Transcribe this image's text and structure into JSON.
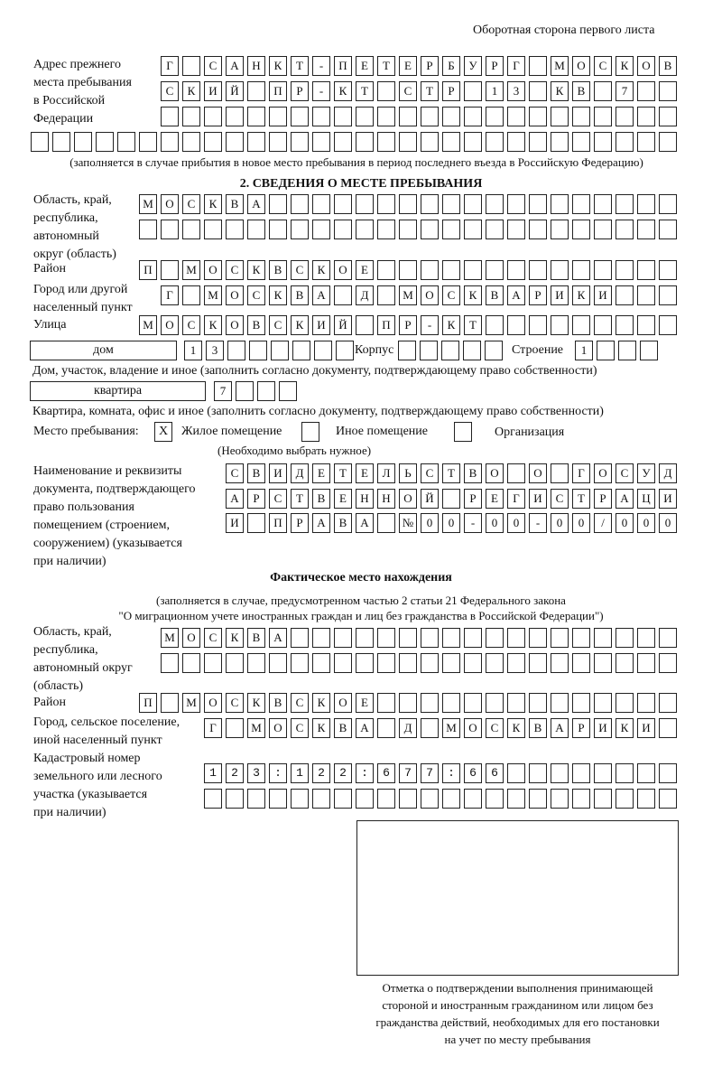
{
  "header": {
    "page_note": "Оборотная сторона первого листа"
  },
  "prev_address": {
    "label": [
      "Адрес прежнего",
      "места пребывания",
      "в Российской",
      "Федерации"
    ],
    "rows": [
      "Г САНКТ-ПЕТЕРБУРГ МОСКОВ",
      "СКИЙ ПР-КТ СТР 13 КВ 7  ",
      "                        ",
      "                              "
    ],
    "note": "(заполняется в случае прибытия в новое место пребывания в период последнего въезда в Российскую Федерацию)"
  },
  "section2": {
    "title": "2. СВЕДЕНИЯ О МЕСТЕ ПРЕБЫВАНИЯ",
    "region_label": [
      "Область, край,",
      "республика,",
      "автономный",
      "округ (область)"
    ],
    "region_rows": [
      "МОСКВА                   ",
      "                         "
    ],
    "district_label": "Район",
    "district_row": "П МОСКВСКОЕ              ",
    "city_label": [
      "Город или другой",
      "населенный пункт"
    ],
    "city_row": "Г МОСКВА Д МОСКВАРИКИ   ",
    "street_label": "Улица",
    "street_row": "МОСКОВСКИЙ ПР-КТ         ",
    "house_type": "дом",
    "house_row": "13      ",
    "korpus_label": "Корпус",
    "korpus_row": "     ",
    "building_label": "Строение",
    "building_row": "1   ",
    "house_note": "Дом, участок, владение и иное (заполнить согласно документу, подтверждающему право собственности)",
    "apt_type": "квартира",
    "apt_row": "7   ",
    "apt_note": "Квартира, комната, офис и иное (заполнить согласно документу, подтверждающему право собственности)",
    "stay_label": "Место пребывания:",
    "stay_options": [
      {
        "mark": "X",
        "label": "Жилое помещение"
      },
      {
        "mark": "",
        "label": "Иное помещение"
      },
      {
        "mark": "",
        "label": "Организация"
      }
    ],
    "stay_note": "(Необходимо выбрать нужное)",
    "doc_label": [
      "Наименование и реквизиты",
      "документа, подтверждающего",
      "право пользования",
      "помещением (строением,",
      "сооружением) (указывается",
      "при наличии)"
    ],
    "doc_rows": [
      "СВИДЕТЕЛЬСТВО О ГОСУД",
      "АРСТВЕННОЙ РЕГИСТРАЦИ",
      "И ПРАВА №00-00-00/000"
    ]
  },
  "actual": {
    "title": "Фактическое место нахождения",
    "note": [
      "(заполняется в случае, предусмотренном частью 2 статьи 21 Федерального закона",
      "\"О миграционном учете иностранных граждан и лиц без гражданства в Российской Федерации\")"
    ],
    "region_label": [
      "Область, край,",
      "республика,",
      "автономный округ",
      "(область)"
    ],
    "region_rows": [
      "МОСКВА                  ",
      "                        "
    ],
    "district_label": "Район",
    "district_row": "П МОСКВСКОЕ              ",
    "city_label": [
      "Город, сельское поселение,",
      "иной населенный пункт"
    ],
    "city_row": "Г МОСКВА Д МОСКВАРИКИ ",
    "cadastre_label": [
      "Кадастровый номер",
      "земельного или лесного",
      "участка (указывается",
      "при наличии)"
    ],
    "cadastre_rows": [
      "123:122:677:66        ",
      "                      "
    ]
  },
  "stamp": {
    "caption": [
      "Отметка о подтверждении выполнения принимающей",
      "стороной и иностранным гражданином или лицом без",
      "гражданства действий, необходимых для его постановки",
      "на учет по месту пребывания"
    ]
  }
}
